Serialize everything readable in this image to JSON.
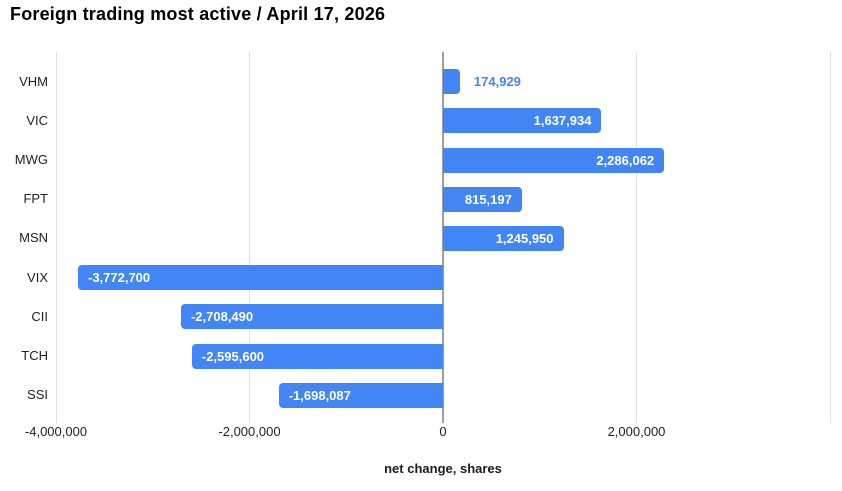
{
  "chart_data": {
    "type": "bar",
    "orientation": "horizontal",
    "title": "Foreign trading most active / April 17, 2026",
    "xlabel": "net change, shares",
    "categories": [
      "VHM",
      "VIC",
      "MWG",
      "FPT",
      "MSN",
      "VIX",
      "CII",
      "TCH",
      "SSI"
    ],
    "values": [
      174929,
      1637934,
      2286062,
      815197,
      1245950,
      -3772700,
      -2708490,
      -2595600,
      -1698087
    ],
    "value_labels": [
      "174,929",
      "1,637,934",
      "2,286,062",
      "815,197",
      "1,245,950",
      "-3,772,700",
      "-2,708,490",
      "-2,595,600",
      "-1,698,087"
    ],
    "xlim": [
      -4000000,
      4000000
    ],
    "xticks": [
      {
        "value": -4000000,
        "label": "-4,000,000"
      },
      {
        "value": -2000000,
        "label": "-2,000,000"
      },
      {
        "value": 0,
        "label": "0"
      },
      {
        "value": 2000000,
        "label": "2,000,000"
      },
      {
        "value": 4000000,
        "label": ""
      }
    ],
    "grid": true,
    "legend": "none",
    "colors": {
      "bar": "#4285f4",
      "inside_label": "#ffffff",
      "outside_label": "#4285f4",
      "gridline": "#e0e0e0",
      "baseline": "#9e9e9e",
      "axis_text": "#222222",
      "title_text": "#000000"
    }
  }
}
